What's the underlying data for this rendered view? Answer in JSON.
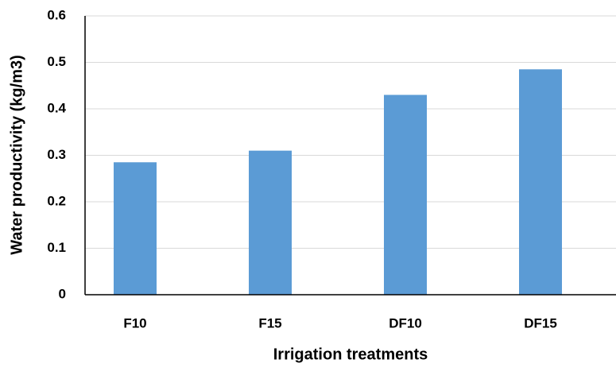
{
  "chart_data": {
    "type": "bar",
    "x_label": "Irrigation treatments",
    "y_label": "Water productivity (kg/m3)",
    "categories": [
      "F10",
      "F15",
      "DF10",
      "DF15"
    ],
    "values": [
      0.285,
      0.31,
      0.43,
      0.485
    ],
    "color": "#5b9bd5",
    "ylim": [
      0,
      0.6
    ],
    "yticks": [
      0,
      0.1,
      0.2,
      0.3,
      0.4,
      0.5,
      0.6
    ],
    "grid": true
  }
}
